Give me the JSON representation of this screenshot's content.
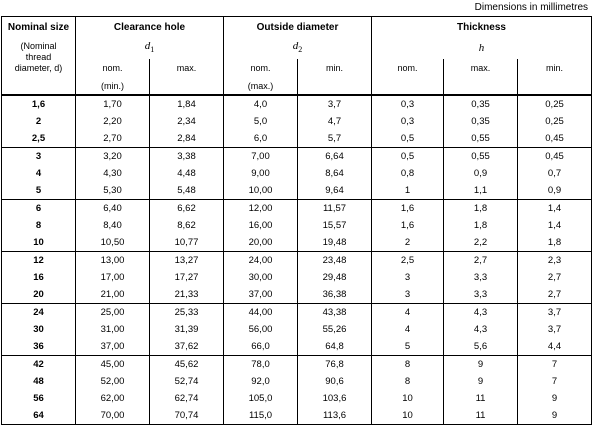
{
  "caption": "Dimensions in millimetres",
  "header": {
    "col1_title": "Nominal size",
    "col1_sub": [
      "(Nominal",
      "thread",
      "diameter, d)"
    ],
    "clearance_title": "Clearance hole",
    "clearance_sym": "d",
    "clearance_sym_sub": "1",
    "outside_title": "Outside diameter",
    "outside_sym": "d",
    "outside_sym_sub": "2",
    "thickness_title": "Thickness",
    "thickness_sym": "h",
    "nom": "nom.",
    "max": "max.",
    "min": "min.",
    "min_paren": "(min.)",
    "max_paren": "(max.)"
  },
  "groups": [
    [
      [
        "1,6",
        "1,70",
        "1,84",
        "4,0",
        "3,7",
        "0,3",
        "0,35",
        "0,25"
      ],
      [
        "2",
        "2,20",
        "2,34",
        "5,0",
        "4,7",
        "0,3",
        "0,35",
        "0,25"
      ],
      [
        "2,5",
        "2,70",
        "2,84",
        "6,0",
        "5,7",
        "0,5",
        "0,55",
        "0,45"
      ]
    ],
    [
      [
        "3",
        "3,20",
        "3,38",
        "7,00",
        "6,64",
        "0,5",
        "0,55",
        "0,45"
      ],
      [
        "4",
        "4,30",
        "4,48",
        "9,00",
        "8,64",
        "0,8",
        "0,9",
        "0,7"
      ],
      [
        "5",
        "5,30",
        "5,48",
        "10,00",
        "9,64",
        "1",
        "1,1",
        "0,9"
      ]
    ],
    [
      [
        "6",
        "6,40",
        "6,62",
        "12,00",
        "11,57",
        "1,6",
        "1,8",
        "1,4"
      ],
      [
        "8",
        "8,40",
        "8,62",
        "16,00",
        "15,57",
        "1,6",
        "1,8",
        "1,4"
      ],
      [
        "10",
        "10,50",
        "10,77",
        "20,00",
        "19,48",
        "2",
        "2,2",
        "1,8"
      ]
    ],
    [
      [
        "12",
        "13,00",
        "13,27",
        "24,00",
        "23,48",
        "2,5",
        "2,7",
        "2,3"
      ],
      [
        "16",
        "17,00",
        "17,27",
        "30,00",
        "29,48",
        "3",
        "3,3",
        "2,7"
      ],
      [
        "20",
        "21,00",
        "21,33",
        "37,00",
        "36,38",
        "3",
        "3,3",
        "2,7"
      ]
    ],
    [
      [
        "24",
        "25,00",
        "25,33",
        "44,00",
        "43,38",
        "4",
        "4,3",
        "3,7"
      ],
      [
        "30",
        "31,00",
        "31,39",
        "56,00",
        "55,26",
        "4",
        "4,3",
        "3,7"
      ],
      [
        "36",
        "37,00",
        "37,62",
        "66,0",
        "64,8",
        "5",
        "5,6",
        "4,4"
      ]
    ],
    [
      [
        "42",
        "45,00",
        "45,62",
        "78,0",
        "76,8",
        "8",
        "9",
        "7"
      ],
      [
        "48",
        "52,00",
        "52,74",
        "92,0",
        "90,6",
        "8",
        "9",
        "7"
      ],
      [
        "56",
        "62,00",
        "62,74",
        "105,0",
        "103,6",
        "10",
        "11",
        "9"
      ],
      [
        "64",
        "70,00",
        "70,74",
        "115,0",
        "113,6",
        "10",
        "11",
        "9"
      ]
    ]
  ]
}
